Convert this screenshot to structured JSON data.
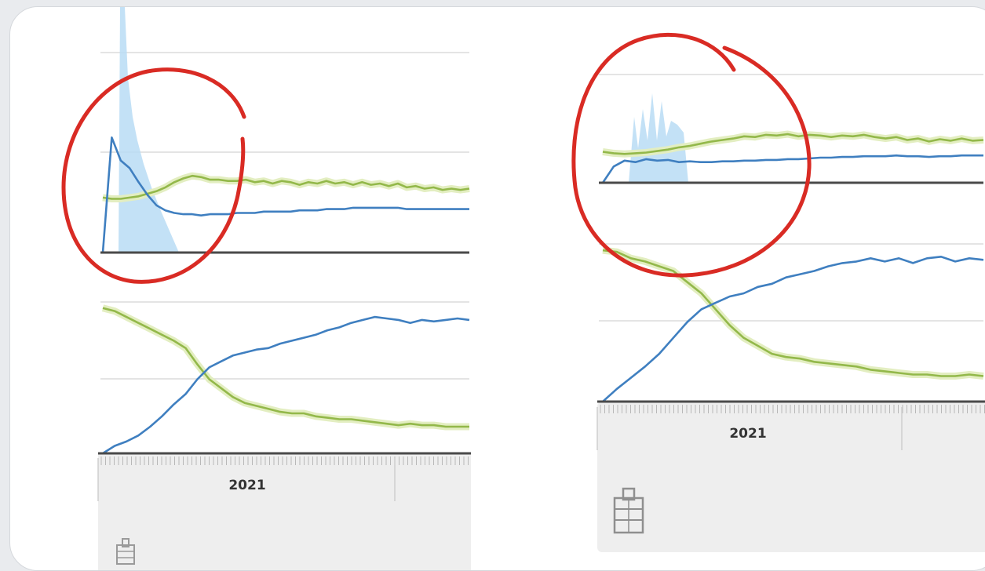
{
  "colors": {
    "blue": "#3f7fc0",
    "blue_fill": "#b9dcf5",
    "green": "#93b84a",
    "green_band": "#e3eec1",
    "annotation": "#d92b24",
    "grid": "#e4e4e4",
    "baseline": "#4a4a4a",
    "axis_strip": "#eeeeee"
  },
  "icons": {
    "chart_source": "building-icon"
  },
  "chart_data": [
    {
      "type": "line",
      "panel": "left",
      "x_label_text": "2021",
      "upper": {
        "series": [
          {
            "color": "green",
            "values": [
              0.43,
              0.42,
              0.42,
              0.43,
              0.44,
              0.46,
              0.48,
              0.51,
              0.55,
              0.58,
              0.6,
              0.59,
              0.57,
              0.57,
              0.56,
              0.56,
              0.57,
              0.55,
              0.56,
              0.54,
              0.56,
              0.55,
              0.53,
              0.55,
              0.54,
              0.56,
              0.54,
              0.55,
              0.53,
              0.55,
              0.53,
              0.54,
              0.52,
              0.54,
              0.51,
              0.52,
              0.5,
              0.51,
              0.49,
              0.5,
              0.49,
              0.5
            ]
          },
          {
            "color": "blue",
            "values": [
              0.0,
              0.9,
              0.72,
              0.66,
              0.55,
              0.45,
              0.37,
              0.33,
              0.31,
              0.3,
              0.3,
              0.29,
              0.3,
              0.3,
              0.3,
              0.31,
              0.31,
              0.31,
              0.32,
              0.32,
              0.32,
              0.32,
              0.33,
              0.33,
              0.33,
              0.34,
              0.34,
              0.34,
              0.35,
              0.35,
              0.35,
              0.35,
              0.35,
              0.35,
              0.34,
              0.34,
              0.34,
              0.34,
              0.34,
              0.34,
              0.34,
              0.34
            ]
          }
        ]
      },
      "lower": {
        "series": [
          {
            "color": "green",
            "values": [
              0.98,
              0.96,
              0.92,
              0.88,
              0.84,
              0.8,
              0.76,
              0.71,
              0.6,
              0.5,
              0.44,
              0.38,
              0.34,
              0.32,
              0.3,
              0.28,
              0.27,
              0.27,
              0.25,
              0.24,
              0.23,
              0.23,
              0.22,
              0.21,
              0.2,
              0.19,
              0.2,
              0.19,
              0.19,
              0.18,
              0.18,
              0.18
            ]
          },
          {
            "color": "blue",
            "values": [
              0.0,
              0.05,
              0.08,
              0.12,
              0.18,
              0.25,
              0.33,
              0.4,
              0.5,
              0.58,
              0.62,
              0.66,
              0.68,
              0.7,
              0.71,
              0.74,
              0.76,
              0.78,
              0.8,
              0.83,
              0.85,
              0.88,
              0.9,
              0.92,
              0.91,
              0.9,
              0.88,
              0.9,
              0.89,
              0.9,
              0.91,
              0.9
            ]
          }
        ]
      }
    },
    {
      "type": "line",
      "panel": "right",
      "x_label_text": "2021",
      "upper": {
        "series": [
          {
            "color": "green",
            "values": [
              0.42,
              0.4,
              0.39,
              0.4,
              0.41,
              0.43,
              0.45,
              0.48,
              0.5,
              0.53,
              0.56,
              0.58,
              0.6,
              0.63,
              0.62,
              0.65,
              0.64,
              0.66,
              0.63,
              0.65,
              0.64,
              0.62,
              0.64,
              0.63,
              0.65,
              0.62,
              0.6,
              0.62,
              0.58,
              0.6,
              0.56,
              0.59,
              0.57,
              0.6,
              0.57,
              0.58
            ]
          },
          {
            "color": "blue",
            "values": [
              0.0,
              0.22,
              0.3,
              0.28,
              0.32,
              0.3,
              0.31,
              0.28,
              0.29,
              0.28,
              0.28,
              0.29,
              0.29,
              0.3,
              0.3,
              0.31,
              0.31,
              0.32,
              0.32,
              0.33,
              0.34,
              0.34,
              0.35,
              0.35,
              0.36,
              0.36,
              0.36,
              0.37,
              0.36,
              0.36,
              0.35,
              0.36,
              0.36,
              0.37,
              0.37,
              0.37
            ]
          }
        ]
      },
      "lower": {
        "series": [
          {
            "color": "green",
            "values": [
              0.95,
              0.94,
              0.9,
              0.88,
              0.85,
              0.82,
              0.75,
              0.68,
              0.58,
              0.48,
              0.4,
              0.35,
              0.3,
              0.28,
              0.27,
              0.25,
              0.24,
              0.23,
              0.22,
              0.2,
              0.19,
              0.18,
              0.17,
              0.17,
              0.16,
              0.16,
              0.17,
              0.16
            ]
          },
          {
            "color": "blue",
            "values": [
              0.0,
              0.08,
              0.15,
              0.22,
              0.3,
              0.4,
              0.5,
              0.58,
              0.62,
              0.66,
              0.68,
              0.72,
              0.74,
              0.78,
              0.8,
              0.82,
              0.85,
              0.87,
              0.88,
              0.9,
              0.88,
              0.9,
              0.87,
              0.9,
              0.91,
              0.88,
              0.9,
              0.89
            ]
          }
        ]
      }
    }
  ]
}
